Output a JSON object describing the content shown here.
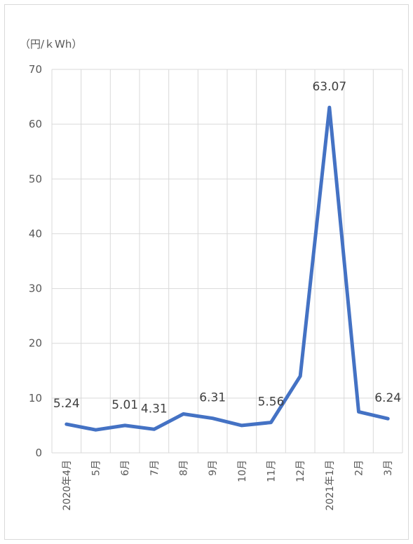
{
  "chart_data": {
    "type": "line",
    "unit_label": "（円/ｋWh）",
    "categories": [
      "2020年4月",
      "5月",
      "6月",
      "7月",
      "8月",
      "9月",
      "10月",
      "11月",
      "12月",
      "2021年1月",
      "2月",
      "3月"
    ],
    "series": [
      {
        "values": [
          5.24,
          4.2,
          5.01,
          4.31,
          7.1,
          6.31,
          5.0,
          5.56,
          14.0,
          63.07,
          7.5,
          6.24
        ],
        "color": "#4472c4"
      }
    ],
    "data_labels": [
      {
        "index": 0,
        "text": "5.24"
      },
      {
        "index": 2,
        "text": "5.01"
      },
      {
        "index": 3,
        "text": "4.31"
      },
      {
        "index": 5,
        "text": "6.31"
      },
      {
        "index": 7,
        "text": "5.56"
      },
      {
        "index": 9,
        "text": "63.07"
      },
      {
        "index": 11,
        "text": "6.24"
      }
    ],
    "y_ticks": [
      0,
      10,
      20,
      30,
      40,
      50,
      60,
      70
    ],
    "ylim": [
      0,
      70
    ],
    "grid": true,
    "gridline_color": "#d9d9d9"
  }
}
